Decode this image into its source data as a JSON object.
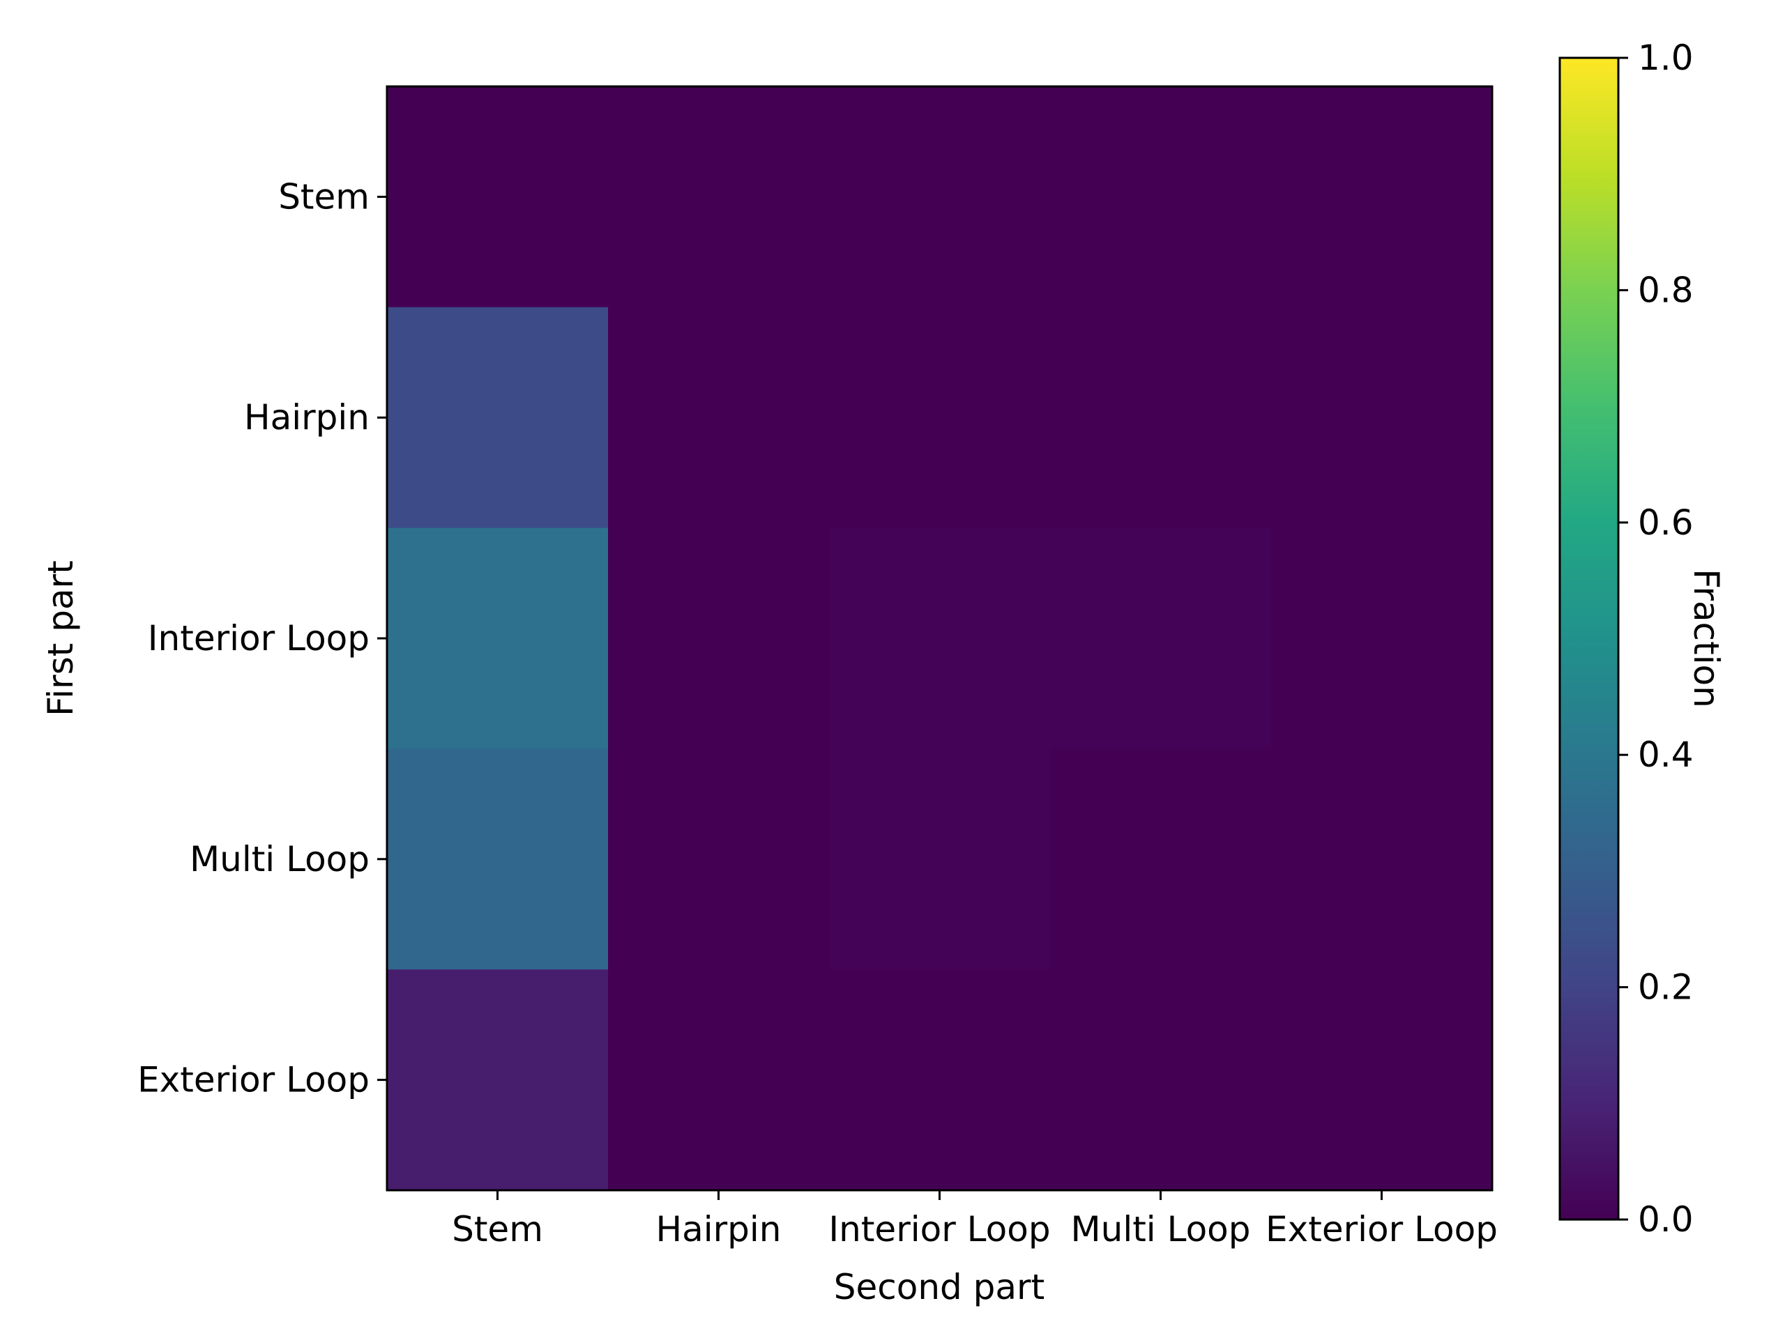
{
  "chart_data": {
    "type": "heatmap",
    "title": "",
    "xlabel": "Second part",
    "ylabel": "First part",
    "x_categories": [
      "Stem",
      "Hairpin",
      "Interior Loop",
      "Multi Loop",
      "Exterior Loop"
    ],
    "y_categories": [
      "Stem",
      "Hairpin",
      "Interior Loop",
      "Multi Loop",
      "Exterior Loop"
    ],
    "values": [
      [
        0.0,
        0.0,
        0.0,
        0.0,
        0.0
      ],
      [
        0.23,
        0.0,
        0.0,
        0.0,
        0.0
      ],
      [
        0.37,
        0.0,
        0.005,
        0.005,
        0.0
      ],
      [
        0.33,
        0.0,
        0.005,
        0.0,
        0.0
      ],
      [
        0.08,
        0.0,
        0.0,
        0.0,
        0.0
      ]
    ],
    "colormap": "viridis",
    "colorbar": {
      "label": "Fraction",
      "range": [
        0.0,
        1.0
      ],
      "ticks": [
        0.0,
        0.2,
        0.4,
        0.6,
        0.8,
        1.0
      ],
      "tick_labels": [
        "0.0",
        "0.2",
        "0.4",
        "0.6",
        "0.8",
        "1.0"
      ]
    },
    "grid": false
  }
}
